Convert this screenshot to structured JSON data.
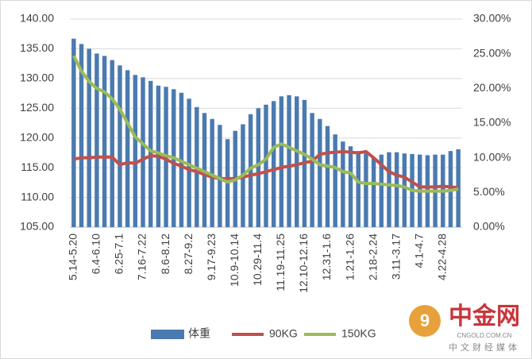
{
  "chart_data": {
    "type": "bar_line",
    "categories": [
      "5.14-5.20",
      null,
      null,
      "6.4-6.10",
      null,
      null,
      "6.25-7.1",
      null,
      null,
      "7.16-7.22",
      null,
      null,
      "8.6-8.12",
      null,
      null,
      "8.27-9.2",
      null,
      null,
      "9.17-9.23",
      null,
      null,
      "10.9-10.14",
      null,
      null,
      "10.29-11.4",
      null,
      null,
      "11.19-11.25",
      null,
      null,
      "12.10-12.16",
      null,
      null,
      "12.31-1.6",
      null,
      null,
      "1.21-1.26",
      null,
      null,
      "2.18-2.24",
      null,
      null,
      "3.11-3.17",
      null,
      null,
      "4.1-4.7",
      null,
      null,
      "4.22-4.28",
      null,
      null
    ],
    "series": [
      {
        "name": "体重",
        "color": "#4a7ab0",
        "axis": "y",
        "kind": "bar",
        "values": [
          136.7,
          135.8,
          135.0,
          134.2,
          133.8,
          133.1,
          132.2,
          131.4,
          130.6,
          130.2,
          129.6,
          128.8,
          128.6,
          128.2,
          127.6,
          126.6,
          125.2,
          124.2,
          123.2,
          122.2,
          119.8,
          121.2,
          122.3,
          124.0,
          125.0,
          125.6,
          126.2,
          127.0,
          127.2,
          127.0,
          126.4,
          124.2,
          123.2,
          122.0,
          120.6,
          119.4,
          118.6,
          117.8,
          117.4,
          116.6,
          117.2,
          117.6,
          117.6,
          117.4,
          117.3,
          117.2,
          117.1,
          117.2,
          117.2,
          117.8,
          118.1
        ]
      },
      {
        "name": "90KG",
        "color": "#c0504d",
        "axis": "y2",
        "kind": "line",
        "values": [
          9.8,
          10.0,
          10.0,
          10.1,
          10.1,
          10.1,
          9.0,
          9.3,
          9.2,
          9.8,
          10.3,
          10.2,
          9.8,
          9.2,
          8.8,
          8.3,
          8.0,
          7.6,
          7.2,
          7.0,
          7.0,
          7.0,
          7.2,
          7.5,
          7.7,
          8.0,
          8.3,
          8.6,
          8.8,
          9.0,
          9.3,
          9.5,
          10.5,
          10.7,
          10.8,
          10.9,
          10.8,
          10.7,
          10.9,
          10.0,
          9.0,
          8.0,
          7.5,
          7.2,
          6.5,
          5.8,
          5.8,
          5.8,
          5.9,
          5.8,
          5.7
        ]
      },
      {
        "name": "150KG",
        "color": "#9bbb59",
        "axis": "y2",
        "kind": "line",
        "values": [
          24.7,
          22.5,
          21.0,
          20.0,
          19.5,
          18.5,
          17.0,
          15.0,
          13.0,
          12.0,
          11.0,
          10.7,
          10.3,
          10.0,
          9.5,
          9.0,
          8.5,
          8.0,
          7.5,
          7.0,
          6.5,
          6.8,
          7.5,
          8.5,
          9.0,
          9.8,
          11.5,
          12.0,
          11.5,
          11.0,
          10.5,
          9.8,
          9.0,
          8.8,
          8.6,
          8.0,
          7.8,
          6.5,
          6.3,
          6.3,
          6.2,
          6.1,
          6.0,
          5.8,
          5.3,
          5.2,
          5.2,
          5.2,
          5.2,
          5.3,
          5.5
        ]
      }
    ],
    "ylim": [
      105,
      140
    ],
    "yticks": [
      {
        "value": 105,
        "label": "105.00"
      },
      {
        "value": 110,
        "label": "110.00"
      },
      {
        "value": 115,
        "label": "115.00"
      },
      {
        "value": 120,
        "label": "120.00"
      },
      {
        "value": 125,
        "label": "125.00"
      },
      {
        "value": 130,
        "label": "130.00"
      },
      {
        "value": 135,
        "label": "135.00"
      },
      {
        "value": 140,
        "label": "140.00"
      }
    ],
    "y2lim": [
      0,
      30
    ],
    "y2ticks": [
      {
        "value": 0,
        "label": "0.00%"
      },
      {
        "value": 5,
        "label": "5.00%"
      },
      {
        "value": 10,
        "label": "10.00%"
      },
      {
        "value": 15,
        "label": "15.00%"
      },
      {
        "value": 20,
        "label": "20.00%"
      },
      {
        "value": 25,
        "label": "25.00%"
      },
      {
        "value": 30,
        "label": "30.00%"
      }
    ],
    "grid": true,
    "legend": "bottom",
    "watermark": {
      "name": "中金网",
      "site": "CNGOLD.COM.CN",
      "tagline": "中文财经媒体"
    }
  }
}
